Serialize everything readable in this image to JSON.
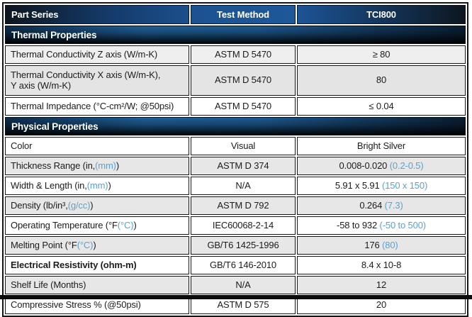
{
  "colors": {
    "accent_blue": "#5aa2d2",
    "header_blue": "#1e5899",
    "section_dark": "#0a1e33",
    "row_alt_gray": "#e7e7e7",
    "border_dark": "#151515"
  },
  "header": {
    "part_series": "Part Series",
    "test_method": "Test Method",
    "part_number": "TCI800"
  },
  "sections": [
    {
      "title": "Thermal Properties",
      "rows": [
        {
          "property": "Thermal Conductivity Z axis (W/m-K)",
          "method": "ASTM D 5470",
          "value": "≥ 80"
        },
        {
          "property": "Thermal Conductivity X axis (W/m-K),\nY axis (W/m-K)",
          "method": "ASTM D 5470",
          "value": "80"
        },
        {
          "property": "Thermal Impedance (°C-cm²/W; @50psi)",
          "method": "ASTM D 5470",
          "value": "≤ 0.04"
        }
      ]
    },
    {
      "title": "Physical Properties",
      "rows": [
        {
          "property": "Color",
          "method": "Visual",
          "value": "Bright Silver"
        },
        {
          "property": "Thickness Range (in, ",
          "property_accent": "(mm)",
          "property_close": ")",
          "method": "ASTM D 374",
          "value": "0.008-0.020 ",
          "value_accent": "(0.2-0.5)"
        },
        {
          "property": "Width & Length (in, ",
          "property_accent": "(mm)",
          "property_close": ")",
          "method": "N/A",
          "value": "5.91 x 5.91 ",
          "value_accent": "(150 x 150)"
        },
        {
          "property": "Density (lb/in³, ",
          "property_accent": "(g/cc)",
          "property_close": ")",
          "method": "ASTM D 792",
          "value": "0.264 ",
          "value_accent": "(7.3)"
        },
        {
          "property": "Operating Temperature (°F ",
          "property_accent": "(°C)",
          "property_close": ")",
          "method": "IEC60068-2-14",
          "value": "-58 to 932 ",
          "value_accent": "(-50 to 500)"
        },
        {
          "property": "Melting Point (°F ",
          "property_accent": "(°C)",
          "property_close": ")",
          "method": "GB/T6 1425-1996",
          "value": "176 ",
          "value_accent": "(80)"
        },
        {
          "property": "Electrical Resistivity (ohm-m)",
          "method": "GB/T6 146-2010",
          "value": "8.4 x 10-8"
        },
        {
          "property": "Shelf Life (Months)",
          "method": "N/A",
          "value": "12"
        },
        {
          "property": "Compressive Stress % (@50psi)",
          "method": "ASTM D 575",
          "value": "20"
        }
      ]
    }
  ]
}
